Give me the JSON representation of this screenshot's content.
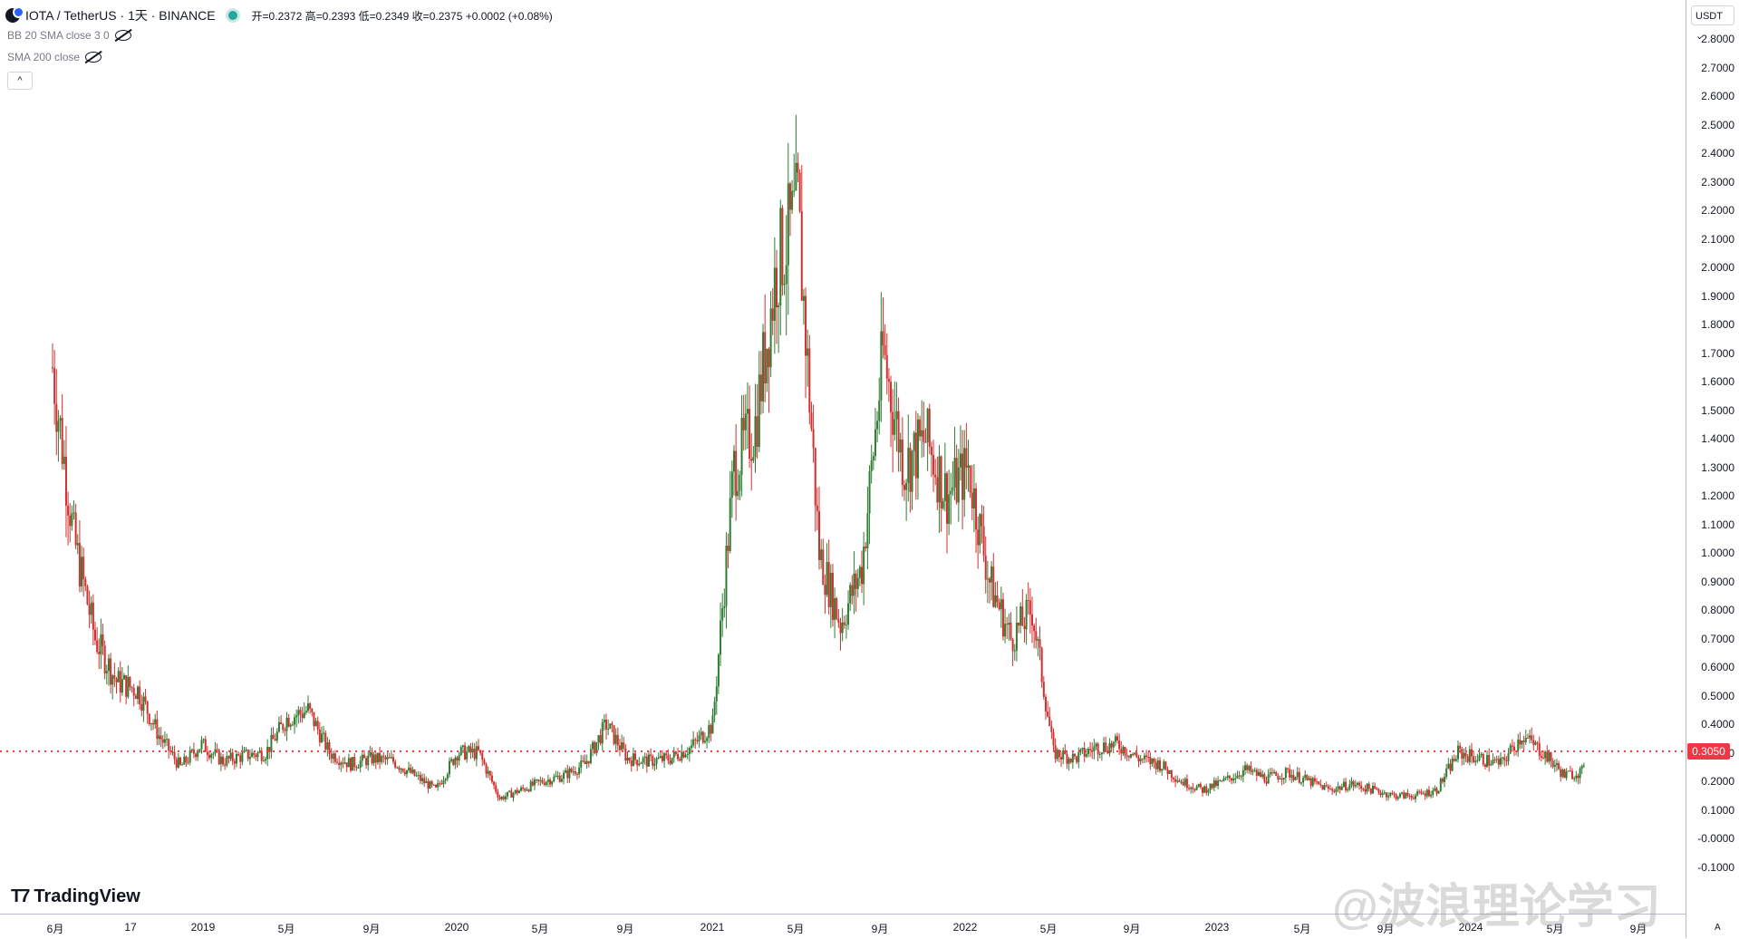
{
  "header": {
    "symbol": "IOTA / TetherUS · 1天 · BINANCE",
    "ohlc": "开=0.2372 高=0.2393 低=0.2349 收=0.2375 +0.0002 (+0.08%)"
  },
  "indicators": [
    {
      "label": "BB 20 SMA close 3 0"
    },
    {
      "label": "SMA 200 close"
    }
  ],
  "collapse_label": "^",
  "currency": "USDT",
  "watermark": "@波浪理论学习",
  "logo_text": "TradingView",
  "price_label": "0.3050",
  "colors": {
    "up": "#26a69a",
    "down": "#ef5350",
    "bar_up": "#2e7d32",
    "bar_down": "#d32f2f",
    "hline": "#f23645"
  },
  "price_ticks": [
    "2.8000",
    "2.7000",
    "2.6000",
    "2.5000",
    "2.4000",
    "2.3000",
    "2.2000",
    "2.1000",
    "2.0000",
    "1.9000",
    "1.8000",
    "1.7000",
    "1.6000",
    "1.5000",
    "1.4000",
    "1.3000",
    "1.2000",
    "1.1000",
    "1.0000",
    "0.9000",
    "0.8000",
    "0.7000",
    "0.6000",
    "0.5000",
    "0.4000",
    "0.3000",
    "0.2000",
    "0.1000",
    "-0.0000",
    "-0.1000"
  ],
  "time_ticks": [
    "6月",
    "17",
    "2019",
    "5月",
    "9月",
    "2020",
    "5月",
    "9月",
    "2021",
    "5月",
    "9月",
    "2022",
    "5月",
    "9月",
    "2023",
    "5月",
    "9月",
    "2024",
    "5月",
    "9月"
  ],
  "chart_data": {
    "type": "candlestick",
    "title": "IOTA / TetherUS · 1天 · BINANCE",
    "ylim": [
      -0.2,
      2.9
    ],
    "horizontal_line": 0.305,
    "series": [
      {
        "date": "2018-06",
        "close": 1.65
      },
      {
        "date": "2018-07",
        "close": 1.05
      },
      {
        "date": "2018-08",
        "close": 0.7
      },
      {
        "date": "2018-09",
        "close": 0.55
      },
      {
        "date": "2018-10",
        "close": 0.52
      },
      {
        "date": "2018-11",
        "close": 0.36
      },
      {
        "date": "2018-12",
        "close": 0.25
      },
      {
        "date": "2019-01",
        "close": 0.33
      },
      {
        "date": "2019-02",
        "close": 0.27
      },
      {
        "date": "2019-03",
        "close": 0.29
      },
      {
        "date": "2019-04",
        "close": 0.3
      },
      {
        "date": "2019-05",
        "close": 0.42
      },
      {
        "date": "2019-06",
        "close": 0.45
      },
      {
        "date": "2019-07",
        "close": 0.3
      },
      {
        "date": "2019-08",
        "close": 0.26
      },
      {
        "date": "2019-09",
        "close": 0.28
      },
      {
        "date": "2019-10",
        "close": 0.27
      },
      {
        "date": "2019-11",
        "close": 0.22
      },
      {
        "date": "2019-12",
        "close": 0.17
      },
      {
        "date": "2020-01",
        "close": 0.3
      },
      {
        "date": "2020-02",
        "close": 0.3
      },
      {
        "date": "2020-03",
        "close": 0.14
      },
      {
        "date": "2020-04",
        "close": 0.17
      },
      {
        "date": "2020-05",
        "close": 0.2
      },
      {
        "date": "2020-06",
        "close": 0.22
      },
      {
        "date": "2020-07",
        "close": 0.26
      },
      {
        "date": "2020-08",
        "close": 0.4
      },
      {
        "date": "2020-09",
        "close": 0.28
      },
      {
        "date": "2020-10",
        "close": 0.27
      },
      {
        "date": "2020-11",
        "close": 0.28
      },
      {
        "date": "2020-12",
        "close": 0.32
      },
      {
        "date": "2021-01",
        "close": 0.4
      },
      {
        "date": "2021-02",
        "close": 1.3
      },
      {
        "date": "2021-03",
        "close": 1.45
      },
      {
        "date": "2021-04",
        "close": 2.0
      },
      {
        "date": "2021-05",
        "close": 2.2
      },
      {
        "date": "2021-06",
        "close": 1.0
      },
      {
        "date": "2021-07",
        "close": 0.75
      },
      {
        "date": "2021-08",
        "close": 0.95
      },
      {
        "date": "2021-09",
        "close": 1.7
      },
      {
        "date": "2021-10",
        "close": 1.3
      },
      {
        "date": "2021-11",
        "close": 1.4
      },
      {
        "date": "2021-12",
        "close": 1.2
      },
      {
        "date": "2022-01",
        "close": 1.3
      },
      {
        "date": "2022-02",
        "close": 0.9
      },
      {
        "date": "2022-03",
        "close": 0.7
      },
      {
        "date": "2022-04",
        "close": 0.8
      },
      {
        "date": "2022-05",
        "close": 0.3
      },
      {
        "date": "2022-06",
        "close": 0.28
      },
      {
        "date": "2022-07",
        "close": 0.32
      },
      {
        "date": "2022-08",
        "close": 0.33
      },
      {
        "date": "2022-09",
        "close": 0.28
      },
      {
        "date": "2022-10",
        "close": 0.26
      },
      {
        "date": "2022-11",
        "close": 0.2
      },
      {
        "date": "2022-12",
        "close": 0.17
      },
      {
        "date": "2023-01",
        "close": 0.2
      },
      {
        "date": "2023-02",
        "close": 0.24
      },
      {
        "date": "2023-03",
        "close": 0.21
      },
      {
        "date": "2023-04",
        "close": 0.23
      },
      {
        "date": "2023-05",
        "close": 0.2
      },
      {
        "date": "2023-06",
        "close": 0.17
      },
      {
        "date": "2023-07",
        "close": 0.19
      },
      {
        "date": "2023-08",
        "close": 0.17
      },
      {
        "date": "2023-09",
        "close": 0.15
      },
      {
        "date": "2023-10",
        "close": 0.15
      },
      {
        "date": "2023-11",
        "close": 0.17
      },
      {
        "date": "2023-12",
        "close": 0.3
      },
      {
        "date": "2024-01",
        "close": 0.28
      },
      {
        "date": "2024-02",
        "close": 0.26
      },
      {
        "date": "2024-03",
        "close": 0.36
      },
      {
        "date": "2024-04",
        "close": 0.3
      },
      {
        "date": "2024-05",
        "close": 0.22
      },
      {
        "date": "2024-06",
        "close": 0.2375
      }
    ]
  }
}
